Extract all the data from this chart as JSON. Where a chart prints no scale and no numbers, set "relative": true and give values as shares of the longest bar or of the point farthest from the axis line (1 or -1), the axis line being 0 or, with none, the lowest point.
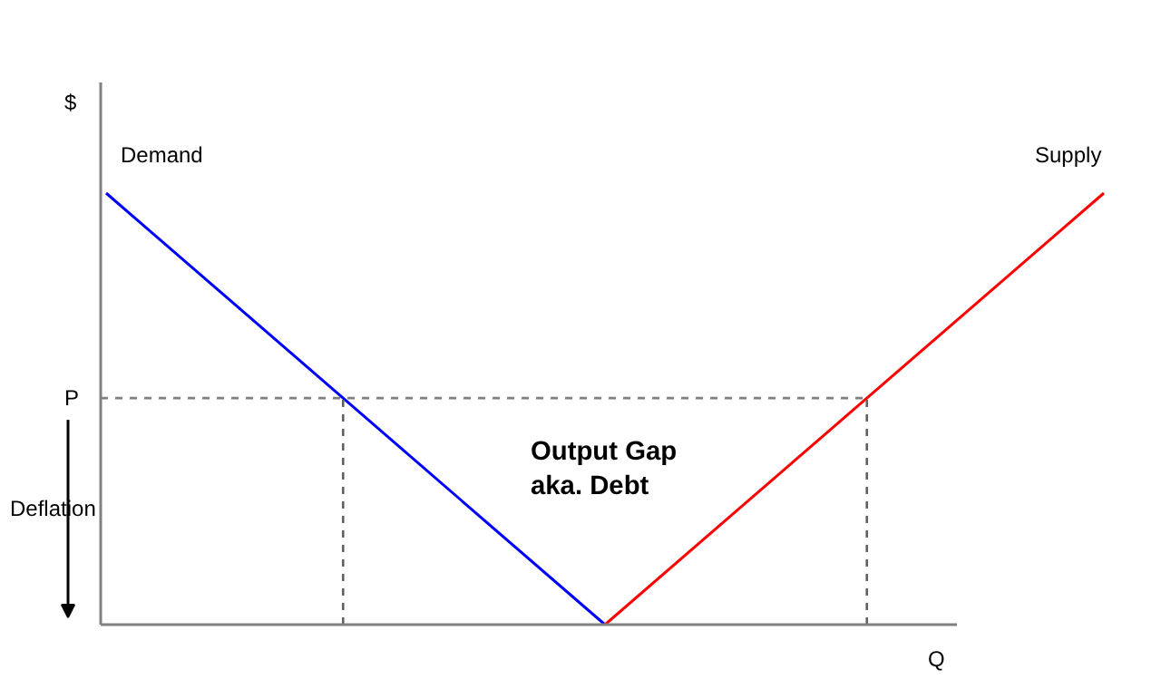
{
  "chart_data": {
    "type": "line",
    "relative": true,
    "ylabel": "$",
    "xlabel": "Q",
    "categories": [
      null,
      null,
      null
    ],
    "grid": false,
    "series": [
      {
        "name": "Demand",
        "color": "#0000ff",
        "values": [
          1,
          0,
          null
        ]
      },
      {
        "name": "Supply",
        "color": "#ff0000",
        "values": [
          null,
          0,
          1
        ]
      }
    ],
    "ref_lines": [
      {
        "axis": "y",
        "value": 0.525,
        "label": "P",
        "color": "#808080",
        "line_style": "dashed"
      }
    ],
    "annotations": [
      "Deflation",
      "Output Gap\naka. Debt"
    ]
  }
}
